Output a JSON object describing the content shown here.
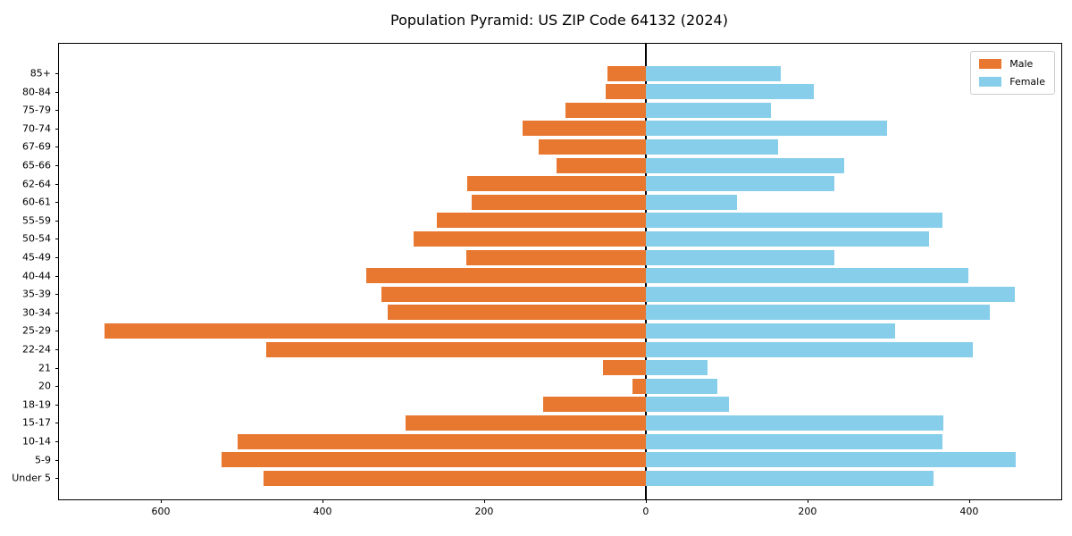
{
  "title": "Population Pyramid: US ZIP Code 64132 (2024)",
  "legend": {
    "entries": [
      {
        "label": "Male",
        "color": "#e8772f"
      },
      {
        "label": "Female",
        "color": "#87ceeb"
      }
    ]
  },
  "colors": {
    "male": "#e8772f",
    "female": "#87ceeb",
    "axis": "#000000",
    "legend_border": "#cccccc",
    "background": "#ffffff"
  },
  "chart_data": {
    "type": "bar",
    "orientation": "horizontal-pyramid",
    "title": "Population Pyramid: US ZIP Code 64132 (2024)",
    "xlabel": "",
    "ylabel": "",
    "categories": [
      "85+",
      "80-84",
      "75-79",
      "70-74",
      "67-69",
      "65-66",
      "62-64",
      "60-61",
      "55-59",
      "50-54",
      "45-49",
      "40-44",
      "35-39",
      "30-34",
      "25-29",
      "22-24",
      "21",
      "20",
      "18-19",
      "15-17",
      "10-14",
      "5-9",
      "Under 5"
    ],
    "series": [
      {
        "name": "Male",
        "side": "left",
        "color": "#e8772f",
        "values": [
          47,
          50,
          99,
          152,
          133,
          110,
          221,
          215,
          258,
          287,
          222,
          346,
          327,
          319,
          670,
          470,
          53,
          17,
          127,
          297,
          505,
          525,
          473
        ]
      },
      {
        "name": "Female",
        "side": "right",
        "color": "#87ceeb",
        "values": [
          167,
          208,
          155,
          298,
          164,
          245,
          233,
          113,
          367,
          350,
          233,
          399,
          456,
          426,
          308,
          405,
          76,
          89,
          103,
          368,
          367,
          458,
          356
        ]
      }
    ],
    "xlim": [
      -726,
      514
    ],
    "xticks": {
      "values": [
        -600,
        -400,
        -200,
        0,
        200,
        400
      ],
      "labels": [
        "600",
        "400",
        "200",
        "0",
        "200",
        "400"
      ]
    },
    "grid": false,
    "zero_line": true,
    "legend_position": "upper right"
  }
}
